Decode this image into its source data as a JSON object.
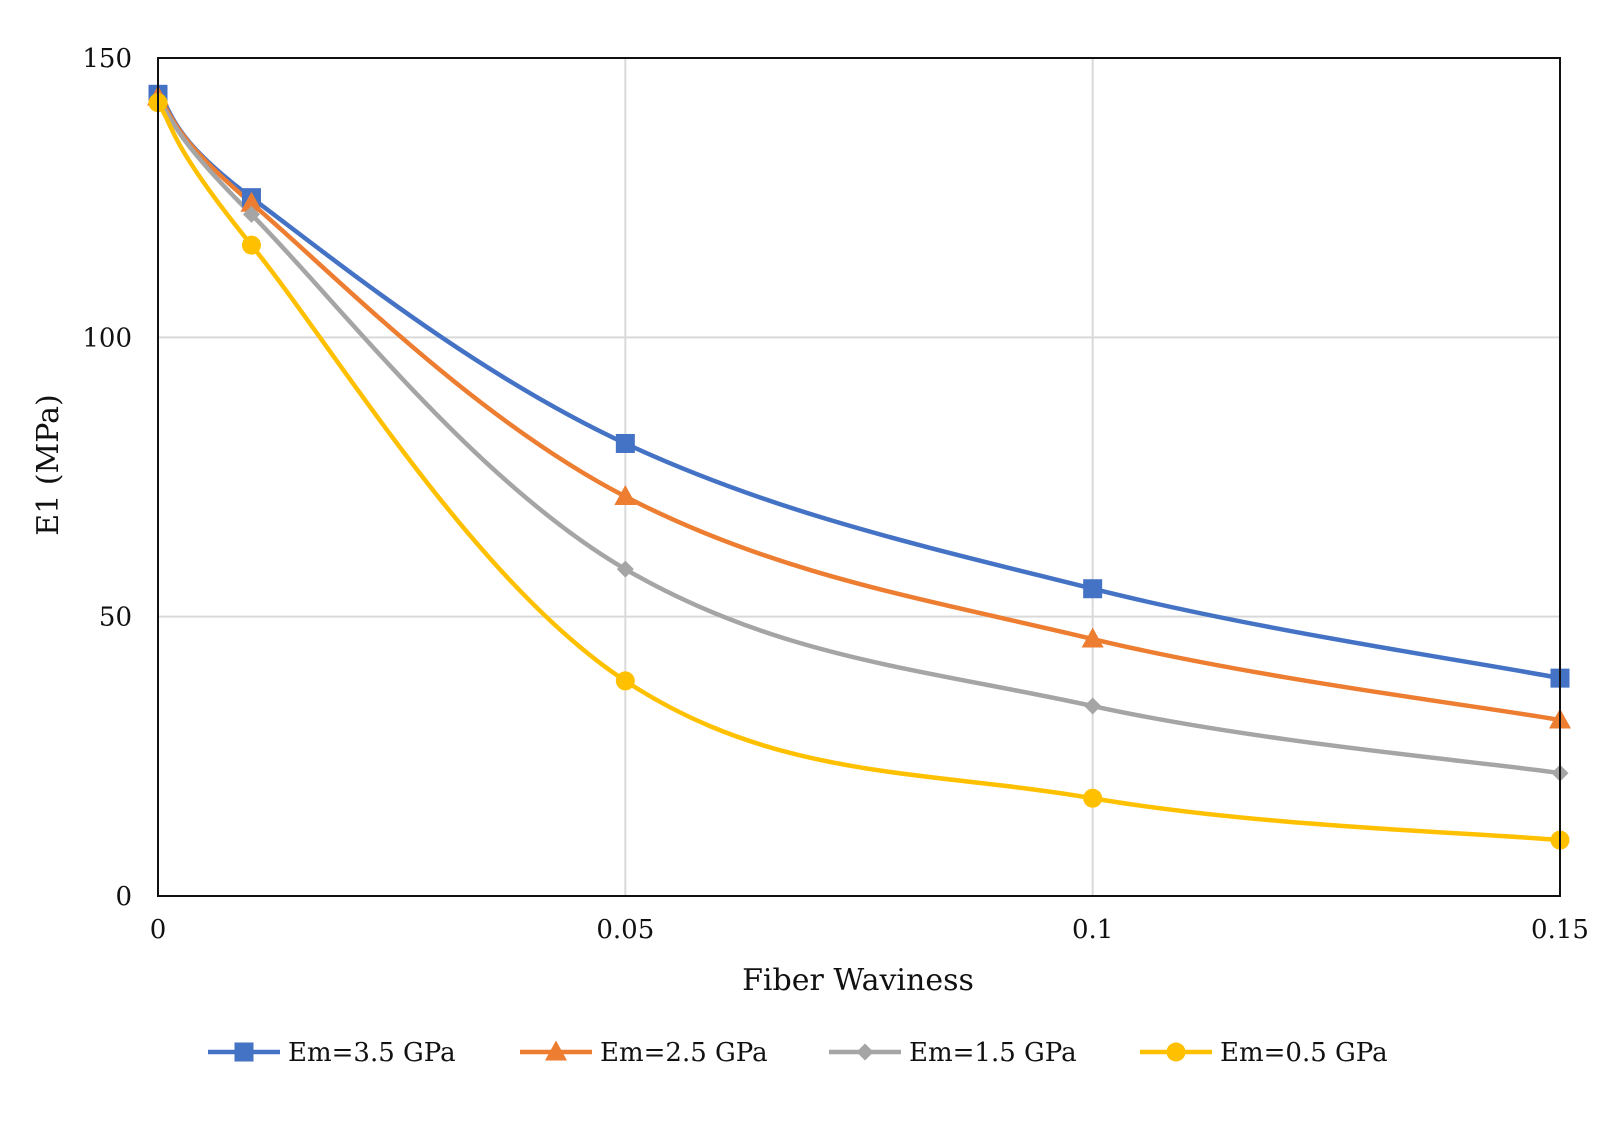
{
  "chart_data": {
    "type": "line",
    "title": "",
    "xlabel": "Fiber Waviness",
    "ylabel": "E1 (MPa)",
    "xlim": [
      0,
      0.15
    ],
    "ylim": [
      0,
      150
    ],
    "xticks": [
      0,
      0.05,
      0.1,
      0.15
    ],
    "xtick_labels": [
      "0",
      "0.05",
      "0.1",
      "0.15"
    ],
    "yticks": [
      0,
      50,
      100,
      150
    ],
    "ytick_labels": [
      "0",
      "50",
      "100",
      "150"
    ],
    "grid": true,
    "legend_position": "bottom",
    "x": [
      0,
      0.01,
      0.05,
      0.1,
      0.15
    ],
    "series": [
      {
        "name": "Em=3.5 GPa",
        "color": "#4472C4",
        "marker": "square",
        "values": [
          143.5,
          125,
          81,
          55,
          39
        ]
      },
      {
        "name": "Em=2.5 GPa",
        "color": "#ED7D31",
        "marker": "triangle",
        "values": [
          143,
          124,
          71.5,
          46,
          31.5
        ]
      },
      {
        "name": "Em=1.5 GPa",
        "color": "#A5A5A5",
        "marker": "diamond",
        "values": [
          142.5,
          122,
          58.5,
          34,
          22
        ]
      },
      {
        "name": "Em=0.5 GPa",
        "color": "#FFC000",
        "marker": "circle",
        "values": [
          142,
          116.5,
          38.5,
          17.5,
          10
        ]
      }
    ]
  }
}
